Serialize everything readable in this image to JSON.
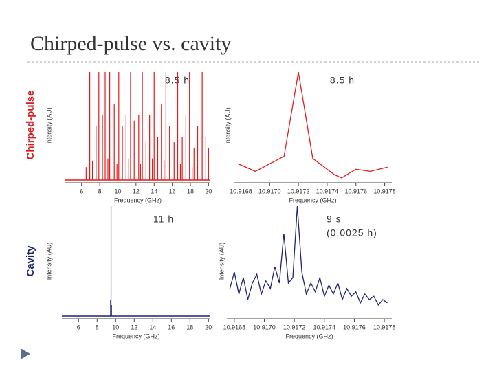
{
  "slide": {
    "title": "Chirped-pulse vs. cavity",
    "row_labels": [
      {
        "text": "Chirped-pulse",
        "color": "#d7191c"
      },
      {
        "text": "Cavity",
        "color": "#1f2470"
      }
    ]
  },
  "chart_data": [
    {
      "type": "stem",
      "annotation": [
        "8.5 h"
      ],
      "xlabel": "Frequency (GHz)",
      "ylabel": "Intensity (AU)",
      "color": "#e31a1c",
      "xlim": [
        4.2,
        20.2
      ],
      "xticks": [
        6,
        8,
        10,
        12,
        14,
        16,
        18,
        20
      ],
      "ylim": [
        0,
        1
      ],
      "x": [
        6.5,
        6.9,
        7.2,
        7.6,
        7.9,
        8.3,
        8.6,
        8.9,
        9.1,
        9.6,
        9.9,
        10.1,
        10.5,
        10.9,
        11.2,
        11.4,
        11.8,
        12.3,
        12.5,
        12.7,
        13.1,
        13.5,
        13.8,
        14.0,
        14.4,
        14.8,
        15.1,
        15.3,
        15.7,
        16.2,
        16.6,
        16.9,
        17.1,
        17.5,
        17.9,
        18.2,
        18.4,
        18.8,
        19.3,
        19.7,
        20.0
      ],
      "values": [
        0.12,
        1.0,
        0.18,
        0.5,
        1.0,
        0.6,
        1.0,
        0.2,
        1.0,
        0.7,
        0.15,
        1.0,
        0.5,
        0.6,
        0.2,
        1.0,
        0.55,
        0.6,
        0.15,
        1.0,
        0.35,
        0.6,
        0.2,
        1.0,
        0.4,
        0.7,
        0.18,
        1.0,
        0.5,
        0.35,
        1.0,
        0.15,
        0.4,
        0.6,
        1.0,
        0.12,
        0.3,
        0.5,
        1.0,
        0.4,
        0.3
      ]
    },
    {
      "type": "line",
      "annotation": [
        "8.5 h"
      ],
      "xlabel": "Frequency (GHz)",
      "ylabel": "Intensity (AU)",
      "color": "#e31a1c",
      "xlim": [
        10.91675,
        10.91785
      ],
      "xticks": [
        10.9168,
        {
          "value": 10.917,
          "label": "10.9170"
        },
        10.9172,
        10.9174,
        10.9176,
        10.9178
      ],
      "ylim": [
        0,
        1
      ],
      "x": [
        10.91678,
        10.9169,
        10.9171,
        10.9172,
        10.9173,
        10.91745,
        10.9175,
        10.9176,
        10.9177,
        10.91782
      ],
      "values": [
        0.15,
        0.08,
        0.22,
        1.0,
        0.2,
        0.05,
        0.02,
        0.1,
        0.08,
        0.12
      ]
    },
    {
      "type": "stem",
      "annotation": [
        "11 h"
      ],
      "xlabel": "Frequency (GHz)",
      "ylabel": "Intensity (AU)",
      "color": "#1f2470",
      "xlim": [
        4.2,
        20.2
      ],
      "xticks": [
        6,
        8,
        10,
        12,
        14,
        16,
        18,
        20
      ],
      "ylim": [
        0,
        1
      ],
      "x": [
        9.45,
        9.5,
        9.55
      ],
      "values": [
        0.15,
        1.0,
        0.1
      ]
    },
    {
      "type": "line",
      "annotation": [
        "9 s",
        "(0.0025 h)"
      ],
      "xlabel": "Frequency (GHz)",
      "ylabel": "Intensity (AU)",
      "color": "#1f2470",
      "xlim": [
        10.91675,
        10.91785
      ],
      "xticks": [
        10.9168,
        {
          "value": 10.917,
          "label": "10.9170"
        },
        10.9172,
        10.9174,
        10.9176,
        10.9178
      ],
      "ylim": [
        0,
        1
      ],
      "x": [
        10.91677,
        10.9168,
        10.91683,
        10.91686,
        10.91689,
        10.91692,
        10.91695,
        10.91698,
        10.91701,
        10.91704,
        10.91707,
        10.9171,
        10.91713,
        10.91716,
        10.91719,
        10.91722,
        10.91725,
        10.91728,
        10.91731,
        10.91734,
        10.91737,
        10.9174,
        10.91743,
        10.91746,
        10.91749,
        10.91752,
        10.91755,
        10.91758,
        10.91761,
        10.91764,
        10.91767,
        10.9177,
        10.91773,
        10.91776,
        10.91779,
        10.91782
      ],
      "values": [
        0.25,
        0.4,
        0.2,
        0.35,
        0.15,
        0.3,
        0.38,
        0.2,
        0.32,
        0.25,
        0.45,
        0.3,
        0.75,
        0.3,
        0.35,
        1.0,
        0.4,
        0.2,
        0.3,
        0.22,
        0.35,
        0.18,
        0.28,
        0.2,
        0.3,
        0.15,
        0.25,
        0.18,
        0.22,
        0.12,
        0.2,
        0.15,
        0.18,
        0.1,
        0.15,
        0.12
      ]
    }
  ]
}
